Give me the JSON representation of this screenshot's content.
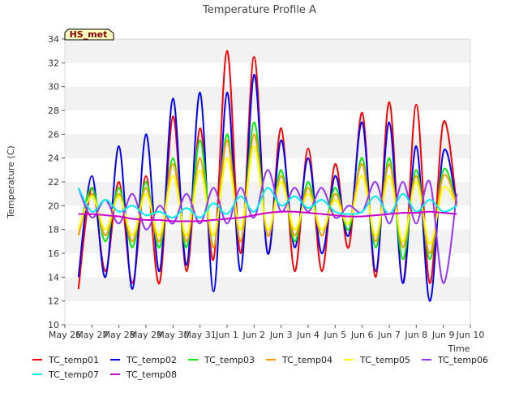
{
  "chart_data": {
    "type": "line",
    "title": "Temperature Profile A",
    "xlabel": "Time",
    "ylabel": "Temperature (C)",
    "ylim": [
      10,
      34
    ],
    "yticks": [
      10,
      12,
      14,
      16,
      18,
      20,
      22,
      24,
      26,
      28,
      30,
      32,
      34
    ],
    "xlim": [
      "2021-05-26",
      "2021-06-10"
    ],
    "xtick_labels": [
      "May 26",
      "May 27",
      "May 28",
      "May 29",
      "May 30",
      "May 31",
      "Jun 1",
      "Jun 2",
      "Jun 3",
      "Jun 4",
      "Jun 5",
      "Jun 6",
      "Jun 7",
      "Jun 8",
      "Jun 9",
      "Jun 10"
    ],
    "grid": "horizontal bands",
    "legend_placement": "bottom",
    "annotation": "HS_met",
    "x": [
      "2021-05-26 12:00",
      "2021-05-27 00:00",
      "2021-05-27 12:00",
      "2021-05-28 00:00",
      "2021-05-28 12:00",
      "2021-05-29 00:00",
      "2021-05-29 12:00",
      "2021-05-30 00:00",
      "2021-05-30 12:00",
      "2021-05-31 00:00",
      "2021-05-31 12:00",
      "2021-06-01 00:00",
      "2021-06-01 12:00",
      "2021-06-02 00:00",
      "2021-06-02 12:00",
      "2021-06-03 00:00",
      "2021-06-03 12:00",
      "2021-06-04 00:00",
      "2021-06-04 12:00",
      "2021-06-05 00:00",
      "2021-06-05 12:00",
      "2021-06-06 00:00",
      "2021-06-06 12:00",
      "2021-06-07 00:00",
      "2021-06-07 12:00",
      "2021-06-08 00:00",
      "2021-06-08 12:00",
      "2021-06-09 00:00",
      "2021-06-09 12:00"
    ],
    "series": [
      {
        "name": "TC_temp01",
        "color": "#ff0000",
        "values": [
          13.0,
          21.5,
          14.5,
          22.0,
          13.5,
          22.5,
          13.5,
          27.5,
          14.5,
          26.5,
          15.5,
          33.0,
          16.0,
          32.5,
          16.0,
          26.5,
          14.5,
          24.8,
          14.5,
          23.5,
          16.5,
          27.8,
          14.0,
          28.7,
          13.5,
          28.5,
          13.5,
          27.0,
          20.0
        ]
      },
      {
        "name": "TC_temp02",
        "color": "#0000ff",
        "values": [
          14.0,
          22.5,
          14.0,
          25.0,
          13.0,
          26.0,
          14.5,
          29.0,
          15.0,
          29.5,
          12.8,
          29.5,
          14.5,
          31.0,
          16.0,
          25.5,
          16.5,
          24.0,
          16.0,
          22.5,
          17.5,
          27.0,
          14.5,
          27.0,
          13.5,
          25.0,
          12.0,
          24.5,
          20.0
        ]
      },
      {
        "name": "TC_temp03",
        "color": "#00ee00",
        "values": [
          17.5,
          21.5,
          17.0,
          21.5,
          16.5,
          22.0,
          16.5,
          24.0,
          16.5,
          25.5,
          16.5,
          26.0,
          17.0,
          27.0,
          17.5,
          23.0,
          17.0,
          22.0,
          17.5,
          21.5,
          18.0,
          24.0,
          16.5,
          24.0,
          15.5,
          23.0,
          15.5,
          23.0,
          20.0
        ]
      },
      {
        "name": "TC_temp04",
        "color": "#ff9900",
        "values": [
          17.5,
          21.0,
          17.5,
          21.0,
          17.0,
          21.5,
          17.0,
          23.5,
          17.0,
          24.0,
          16.5,
          25.5,
          17.0,
          26.0,
          17.5,
          22.5,
          17.5,
          21.5,
          17.5,
          21.0,
          18.5,
          23.5,
          17.0,
          23.5,
          16.5,
          22.5,
          16.0,
          22.5,
          20.0
        ]
      },
      {
        "name": "TC_temp05",
        "color": "#ffff00",
        "values": [
          18.0,
          20.8,
          18.0,
          20.8,
          17.5,
          21.0,
          17.5,
          22.5,
          17.5,
          23.0,
          17.5,
          24.0,
          18.0,
          25.0,
          18.0,
          22.0,
          18.0,
          21.0,
          18.0,
          20.5,
          18.5,
          22.5,
          17.5,
          22.5,
          17.0,
          22.0,
          16.8,
          21.5,
          20.0
        ]
      },
      {
        "name": "TC_temp06",
        "color": "#9933ff",
        "values": [
          21.5,
          19.0,
          20.5,
          18.5,
          21.0,
          18.0,
          20.0,
          18.5,
          21.0,
          18.5,
          21.5,
          18.5,
          21.5,
          19.0,
          23.0,
          19.5,
          21.5,
          19.5,
          21.5,
          19.0,
          20.0,
          19.5,
          22.0,
          18.5,
          22.0,
          18.5,
          22.0,
          13.5,
          21.0
        ]
      },
      {
        "name": "TC_temp07",
        "color": "#00eeee",
        "values": [
          21.5,
          19.5,
          20.5,
          19.5,
          20.0,
          19.2,
          19.5,
          19.0,
          19.8,
          19.0,
          20.2,
          19.3,
          20.8,
          19.5,
          21.5,
          20.0,
          20.8,
          19.8,
          20.5,
          19.5,
          19.3,
          19.5,
          20.8,
          19.3,
          21.0,
          19.5,
          20.5,
          19.5,
          20.0
        ]
      },
      {
        "name": "TC_temp08",
        "color": "#cc00cc",
        "values": [
          19.3,
          19.3,
          19.2,
          19.1,
          18.9,
          18.8,
          18.8,
          18.7,
          18.7,
          18.7,
          18.8,
          18.9,
          19.0,
          19.2,
          19.4,
          19.5,
          19.5,
          19.4,
          19.3,
          19.2,
          19.1,
          19.1,
          19.2,
          19.3,
          19.4,
          19.4,
          19.5,
          19.4,
          19.3
        ]
      }
    ]
  }
}
